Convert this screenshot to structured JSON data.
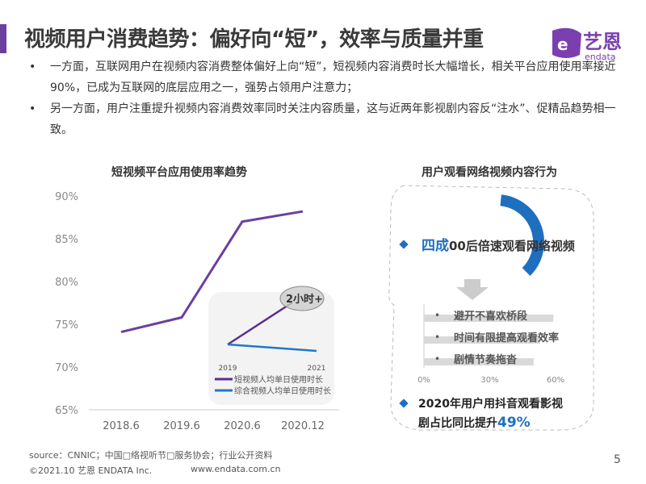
{
  "header": {
    "title": "视频用户消费趋势：偏好向“短”，效率与质量并重",
    "logo_text": "艺恩",
    "logo_sub": "endata"
  },
  "bullets": [
    {
      "text": "一方面，互联网用户在视频内容消费整体偏好上向“短”，短视频内容消费时长大幅增长，相关平台应用使用率接近90%，已成为互联网的底层应用之一，强势占领用户注意力；"
    },
    {
      "text": "另一方面，用户注重提升视频内容消费效率同时关注内容质量，这与近两年影视剧内容反“注水”、促精品趋势相一致。"
    }
  ],
  "bullet_symbol": "•",
  "chart_data": [
    {
      "type": "line",
      "title": "短视频平台应用使用率趋势",
      "categories": [
        "2018.6",
        "2019.6",
        "2020.6",
        "2020.12"
      ],
      "series": [
        {
          "values": [
            74.1,
            75.8,
            87.0,
            88.2
          ],
          "color": "#6b3fa0"
        }
      ],
      "ylim": [
        65,
        90
      ],
      "yticks": [
        "65%",
        "70%",
        "75%",
        "80%",
        "85%",
        "90%"
      ],
      "grid": false,
      "inset": {
        "type": "line",
        "categories": [
          "2019",
          "2021"
        ],
        "annotation": "2小时+",
        "series": [
          {
            "name": "短视频人均单日使用时长",
            "color": "#5b2d8e",
            "trend": "up"
          },
          {
            "name": "综合视频人均单日使用时长",
            "color": "#1f78c8",
            "trend": "down"
          }
        ]
      }
    },
    {
      "type": "bar",
      "orientation": "horizontal",
      "title": "用户观看网络视频内容行为",
      "categories": [
        "避开不喜欢桥段",
        "时间有限提高观看效率",
        "剧情节奏拖沓"
      ],
      "values": [
        59,
        53,
        50
      ],
      "xlim": [
        0,
        60
      ],
      "xticks": [
        "0%",
        "30%",
        "60%"
      ],
      "bar_color": "#d9d9d9",
      "donut": {
        "value": 40,
        "color": "#1f6fbf"
      },
      "highlight1": {
        "emph": "四成",
        "rest": "00后倍速观看网络视频"
      },
      "highlight2": {
        "text": "2020年用户用抖音观看影视剧占比同比提升",
        "emph": "49%"
      }
    }
  ],
  "colors": {
    "accent": "#6b3fa0",
    "blue": "#1f6fbf"
  },
  "footer": {
    "source": "source：CNNIC；中国□络视听节□服务协会；行业公开资料",
    "copyright": "©2021.10 艺恩 ENDATA Inc.",
    "url": "www.endata.com.cn",
    "page": "5"
  }
}
